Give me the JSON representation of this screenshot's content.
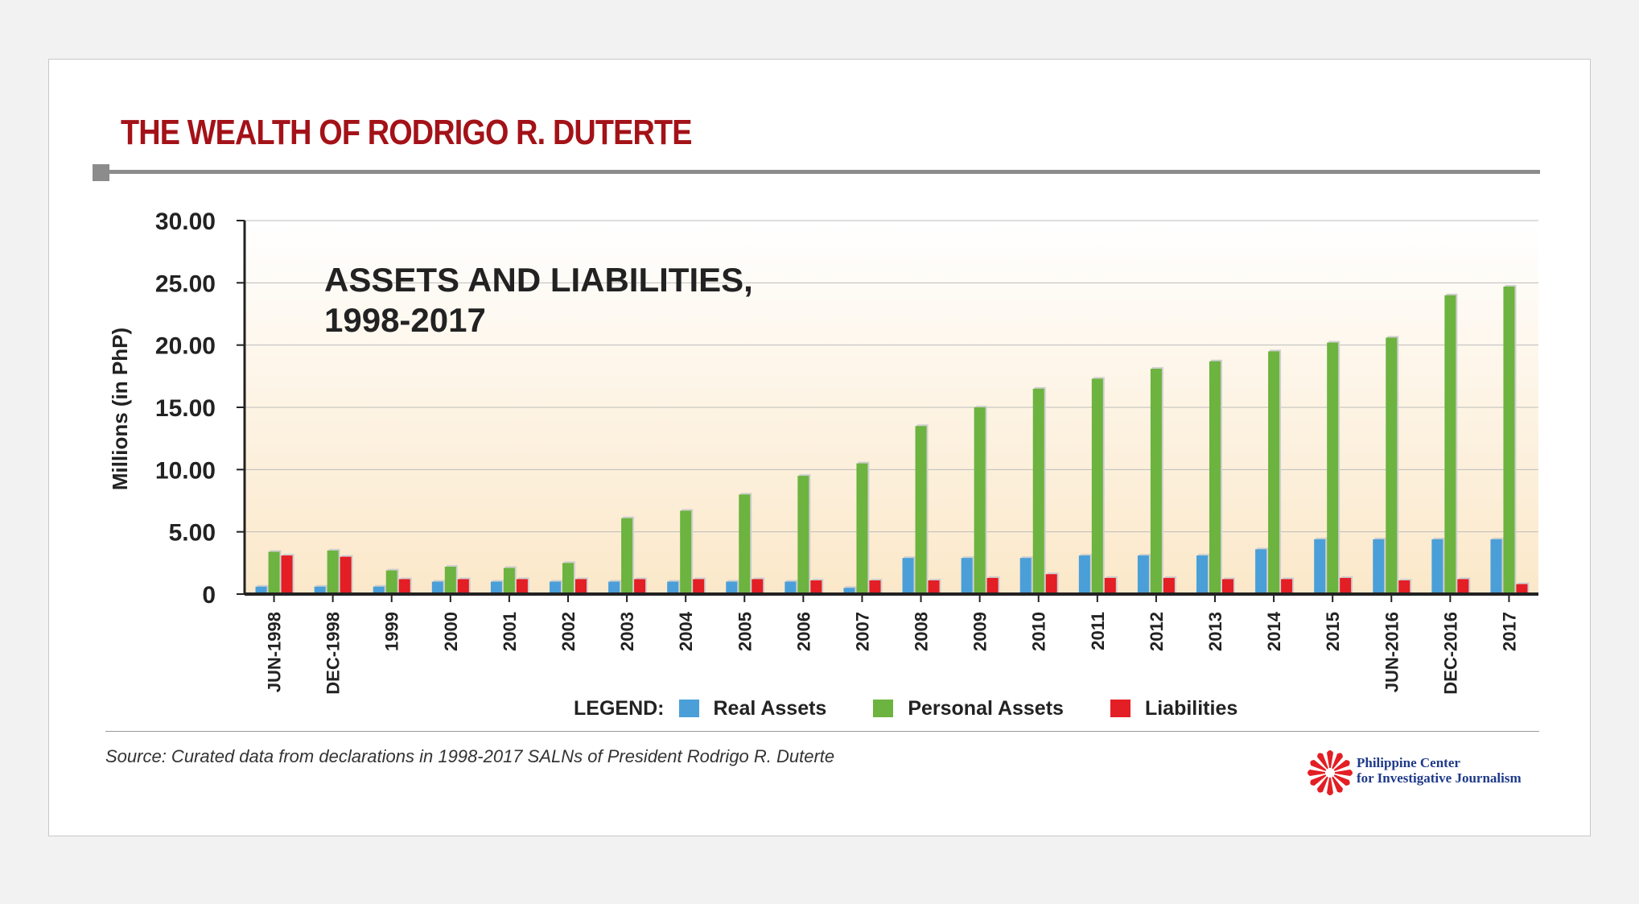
{
  "header": {
    "title": "THE WEALTH OF RODRIGO R. DUTERTE"
  },
  "chart_data": {
    "type": "bar",
    "title": "ASSETS AND LIABILITIES,",
    "subtitle": "1998-2017",
    "ylabel": "Millions  (in PhP)",
    "xlabel": "",
    "ylim": [
      0,
      30
    ],
    "yticks": [
      0,
      5,
      10,
      15,
      20,
      25,
      30
    ],
    "ytick_labels": [
      "0",
      "5.00",
      "10.00",
      "15.00",
      "20.00",
      "25.00",
      "30.00"
    ],
    "grid": true,
    "legend_position": "bottom",
    "categories": [
      "JUN-1998",
      "DEC-1998",
      "1999",
      "2000",
      "2001",
      "2002",
      "2003",
      "2004",
      "2005",
      "2006",
      "2007",
      "2008",
      "2009",
      "2010",
      "2011",
      "2012",
      "2013",
      "2014",
      "2015",
      "JUN-2016",
      "DEC-2016",
      "2017"
    ],
    "series": [
      {
        "name": "Real Assets",
        "color": "#4a9fd8",
        "values": [
          0.6,
          0.6,
          0.6,
          1.0,
          1.0,
          1.0,
          1.0,
          1.0,
          1.0,
          1.0,
          0.5,
          2.9,
          2.9,
          2.9,
          3.1,
          3.1,
          3.1,
          3.6,
          4.4,
          4.4,
          4.4,
          4.4
        ]
      },
      {
        "name": "Personal Assets",
        "color": "#6db33f",
        "values": [
          3.4,
          3.5,
          1.9,
          2.2,
          2.1,
          2.5,
          6.1,
          6.7,
          8.0,
          9.5,
          10.5,
          13.5,
          15.0,
          16.5,
          17.3,
          18.1,
          18.7,
          19.5,
          20.2,
          20.6,
          24.0,
          24.7
        ]
      },
      {
        "name": "Liabilities",
        "color": "#e31e24",
        "values": [
          3.1,
          3.0,
          1.2,
          1.2,
          1.2,
          1.2,
          1.2,
          1.2,
          1.2,
          1.1,
          1.1,
          1.1,
          1.3,
          1.6,
          1.3,
          1.3,
          1.2,
          1.2,
          1.3,
          1.1,
          1.2,
          0.8
        ]
      }
    ]
  },
  "legend": {
    "heading": "LEGEND:"
  },
  "footer": {
    "source": "Source: Curated data from declarations in 1998-2017 SALNs of President Rodrigo R. Duterte",
    "org_line1": "Philippine Center",
    "org_line2": "for Investigative Journalism",
    "logo_icon": "pcij-sunburst-icon"
  }
}
